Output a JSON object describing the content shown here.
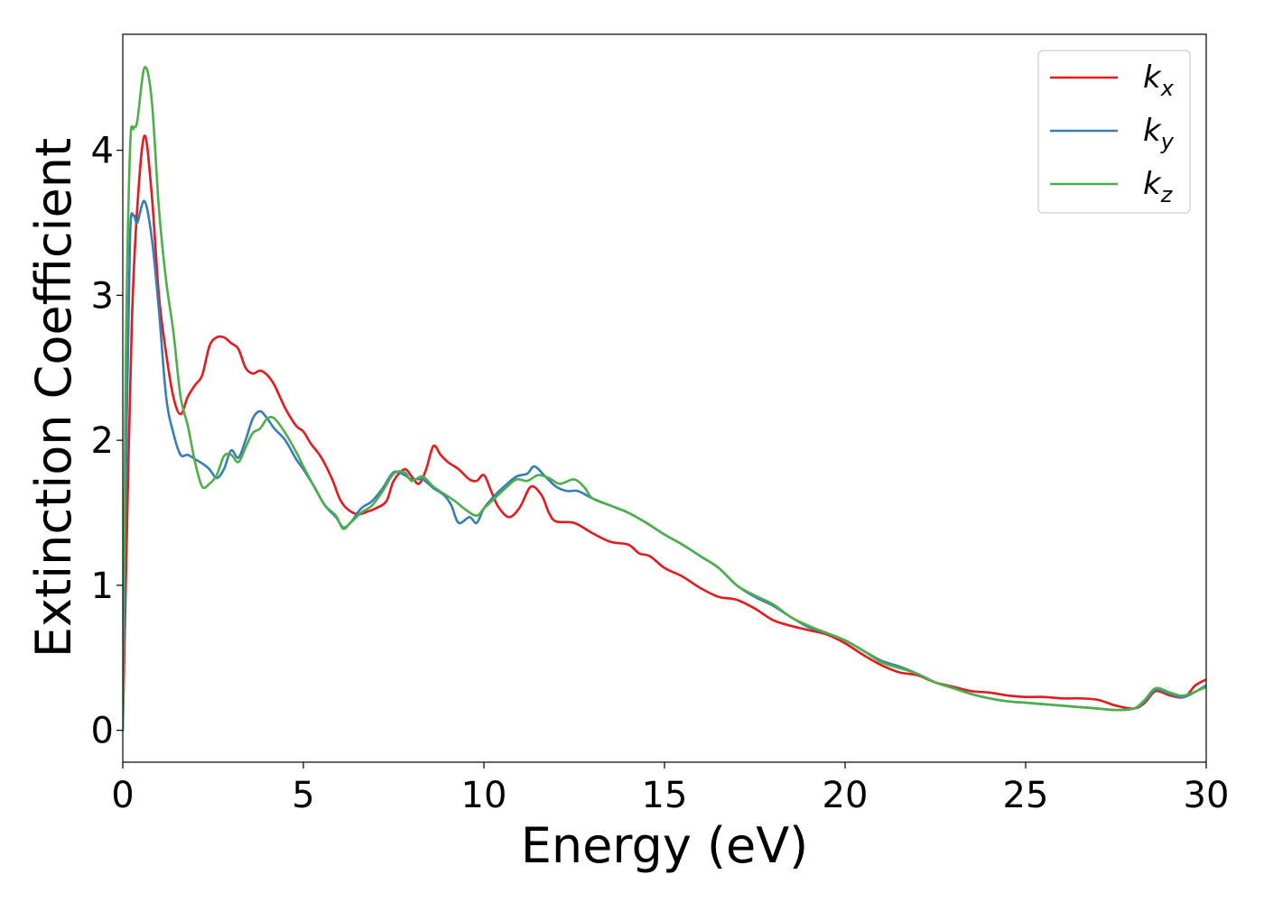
{
  "chart_data": {
    "type": "line",
    "xlabel": "Energy (eV)",
    "ylabel": "Extinction Coefficient",
    "xlim": [
      0,
      30
    ],
    "ylim": [
      -0.22,
      4.8
    ],
    "xticks": [
      0,
      5,
      10,
      15,
      20,
      25,
      30
    ],
    "yticks": [
      0,
      1,
      2,
      3,
      4
    ],
    "grid": false,
    "legend_position": "top-right",
    "series": [
      {
        "name": "k_x",
        "label_base": "k",
        "label_sub": "x",
        "color": "#e41a1c",
        "points": [
          [
            0,
            0
          ],
          [
            0.1,
            1.2
          ],
          [
            0.25,
            2.8
          ],
          [
            0.4,
            3.6
          ],
          [
            0.6,
            4.1
          ],
          [
            0.8,
            3.7
          ],
          [
            1.0,
            3.0
          ],
          [
            1.2,
            2.6
          ],
          [
            1.4,
            2.3
          ],
          [
            1.6,
            2.18
          ],
          [
            1.8,
            2.3
          ],
          [
            2.0,
            2.38
          ],
          [
            2.2,
            2.45
          ],
          [
            2.4,
            2.65
          ],
          [
            2.6,
            2.71
          ],
          [
            2.8,
            2.71
          ],
          [
            3.0,
            2.67
          ],
          [
            3.2,
            2.63
          ],
          [
            3.4,
            2.5
          ],
          [
            3.6,
            2.46
          ],
          [
            3.8,
            2.48
          ],
          [
            4.0,
            2.45
          ],
          [
            4.2,
            2.38
          ],
          [
            4.5,
            2.22
          ],
          [
            4.8,
            2.1
          ],
          [
            5.0,
            2.06
          ],
          [
            5.2,
            1.98
          ],
          [
            5.5,
            1.88
          ],
          [
            5.8,
            1.73
          ],
          [
            6.0,
            1.6
          ],
          [
            6.2,
            1.53
          ],
          [
            6.5,
            1.49
          ],
          [
            6.8,
            1.51
          ],
          [
            7.0,
            1.53
          ],
          [
            7.3,
            1.58
          ],
          [
            7.5,
            1.72
          ],
          [
            7.8,
            1.8
          ],
          [
            8.0,
            1.75
          ],
          [
            8.2,
            1.7
          ],
          [
            8.4,
            1.8
          ],
          [
            8.6,
            1.96
          ],
          [
            8.8,
            1.9
          ],
          [
            9.0,
            1.85
          ],
          [
            9.3,
            1.8
          ],
          [
            9.6,
            1.73
          ],
          [
            9.8,
            1.72
          ],
          [
            10.0,
            1.76
          ],
          [
            10.2,
            1.65
          ],
          [
            10.4,
            1.54
          ],
          [
            10.7,
            1.47
          ],
          [
            11.0,
            1.54
          ],
          [
            11.3,
            1.68
          ],
          [
            11.6,
            1.62
          ],
          [
            11.8,
            1.5
          ],
          [
            12.0,
            1.44
          ],
          [
            12.5,
            1.43
          ],
          [
            13.0,
            1.36
          ],
          [
            13.5,
            1.3
          ],
          [
            14.0,
            1.28
          ],
          [
            14.3,
            1.22
          ],
          [
            14.6,
            1.2
          ],
          [
            15.0,
            1.12
          ],
          [
            15.5,
            1.06
          ],
          [
            16.0,
            0.98
          ],
          [
            16.5,
            0.92
          ],
          [
            17.0,
            0.9
          ],
          [
            17.5,
            0.84
          ],
          [
            18.0,
            0.76
          ],
          [
            18.5,
            0.72
          ],
          [
            19.0,
            0.69
          ],
          [
            19.5,
            0.66
          ],
          [
            20.0,
            0.6
          ],
          [
            20.5,
            0.52
          ],
          [
            21.0,
            0.45
          ],
          [
            21.5,
            0.4
          ],
          [
            22.0,
            0.38
          ],
          [
            22.5,
            0.33
          ],
          [
            23.0,
            0.3
          ],
          [
            23.5,
            0.27
          ],
          [
            24.0,
            0.26
          ],
          [
            24.5,
            0.24
          ],
          [
            25.0,
            0.23
          ],
          [
            25.5,
            0.23
          ],
          [
            26.0,
            0.22
          ],
          [
            26.5,
            0.22
          ],
          [
            27.0,
            0.21
          ],
          [
            27.5,
            0.17
          ],
          [
            28.0,
            0.15
          ],
          [
            28.3,
            0.19
          ],
          [
            28.6,
            0.27
          ],
          [
            29.0,
            0.24
          ],
          [
            29.4,
            0.23
          ],
          [
            29.7,
            0.31
          ],
          [
            30.0,
            0.35
          ]
        ]
      },
      {
        "name": "k_y",
        "label_base": "k",
        "label_sub": "y",
        "color": "#377eb8",
        "points": [
          [
            0,
            0
          ],
          [
            0.1,
            2.0
          ],
          [
            0.2,
            3.4
          ],
          [
            0.3,
            3.55
          ],
          [
            0.4,
            3.5
          ],
          [
            0.6,
            3.65
          ],
          [
            0.8,
            3.4
          ],
          [
            1.0,
            2.9
          ],
          [
            1.2,
            2.3
          ],
          [
            1.4,
            2.05
          ],
          [
            1.6,
            1.9
          ],
          [
            1.8,
            1.9
          ],
          [
            2.0,
            1.87
          ],
          [
            2.2,
            1.84
          ],
          [
            2.4,
            1.8
          ],
          [
            2.6,
            1.74
          ],
          [
            2.8,
            1.8
          ],
          [
            3.0,
            1.93
          ],
          [
            3.2,
            1.88
          ],
          [
            3.4,
            2.0
          ],
          [
            3.6,
            2.15
          ],
          [
            3.8,
            2.2
          ],
          [
            4.0,
            2.15
          ],
          [
            4.2,
            2.08
          ],
          [
            4.5,
            2.0
          ],
          [
            4.8,
            1.87
          ],
          [
            5.0,
            1.8
          ],
          [
            5.3,
            1.68
          ],
          [
            5.6,
            1.55
          ],
          [
            5.9,
            1.47
          ],
          [
            6.1,
            1.4
          ],
          [
            6.3,
            1.43
          ],
          [
            6.6,
            1.53
          ],
          [
            6.9,
            1.58
          ],
          [
            7.2,
            1.67
          ],
          [
            7.5,
            1.78
          ],
          [
            7.8,
            1.76
          ],
          [
            8.0,
            1.73
          ],
          [
            8.3,
            1.73
          ],
          [
            8.6,
            1.67
          ],
          [
            8.9,
            1.62
          ],
          [
            9.1,
            1.55
          ],
          [
            9.3,
            1.43
          ],
          [
            9.6,
            1.47
          ],
          [
            9.8,
            1.43
          ],
          [
            10.0,
            1.53
          ],
          [
            10.3,
            1.62
          ],
          [
            10.6,
            1.69
          ],
          [
            10.9,
            1.75
          ],
          [
            11.2,
            1.77
          ],
          [
            11.4,
            1.82
          ],
          [
            11.7,
            1.75
          ],
          [
            12.0,
            1.68
          ],
          [
            12.3,
            1.65
          ],
          [
            12.6,
            1.65
          ],
          [
            13.0,
            1.6
          ],
          [
            13.5,
            1.55
          ],
          [
            14.0,
            1.5
          ],
          [
            14.5,
            1.43
          ],
          [
            15.0,
            1.35
          ],
          [
            15.5,
            1.28
          ],
          [
            16.0,
            1.2
          ],
          [
            16.5,
            1.12
          ],
          [
            17.0,
            1.0
          ],
          [
            17.5,
            0.92
          ],
          [
            18.0,
            0.86
          ],
          [
            18.5,
            0.78
          ],
          [
            19.0,
            0.71
          ],
          [
            19.5,
            0.67
          ],
          [
            20.0,
            0.62
          ],
          [
            20.5,
            0.55
          ],
          [
            21.0,
            0.48
          ],
          [
            21.5,
            0.44
          ],
          [
            22.0,
            0.39
          ],
          [
            22.5,
            0.33
          ],
          [
            23.0,
            0.29
          ],
          [
            23.5,
            0.25
          ],
          [
            24.0,
            0.22
          ],
          [
            24.5,
            0.2
          ],
          [
            25.0,
            0.19
          ],
          [
            25.5,
            0.18
          ],
          [
            26.0,
            0.17
          ],
          [
            26.5,
            0.16
          ],
          [
            27.0,
            0.15
          ],
          [
            27.5,
            0.14
          ],
          [
            28.0,
            0.15
          ],
          [
            28.3,
            0.2
          ],
          [
            28.6,
            0.28
          ],
          [
            29.0,
            0.25
          ],
          [
            29.4,
            0.23
          ],
          [
            30.0,
            0.31
          ]
        ]
      },
      {
        "name": "k_z",
        "label_base": "k",
        "label_sub": "z",
        "color": "#4daf4a",
        "points": [
          [
            0,
            0
          ],
          [
            0.08,
            2.5
          ],
          [
            0.2,
            4.0
          ],
          [
            0.3,
            4.15
          ],
          [
            0.4,
            4.2
          ],
          [
            0.6,
            4.57
          ],
          [
            0.8,
            4.35
          ],
          [
            1.0,
            3.6
          ],
          [
            1.2,
            3.1
          ],
          [
            1.4,
            2.75
          ],
          [
            1.6,
            2.3
          ],
          [
            1.8,
            2.1
          ],
          [
            2.0,
            1.85
          ],
          [
            2.2,
            1.68
          ],
          [
            2.4,
            1.7
          ],
          [
            2.6,
            1.76
          ],
          [
            2.8,
            1.89
          ],
          [
            3.0,
            1.9
          ],
          [
            3.2,
            1.85
          ],
          [
            3.4,
            1.95
          ],
          [
            3.6,
            2.05
          ],
          [
            3.8,
            2.08
          ],
          [
            4.0,
            2.15
          ],
          [
            4.2,
            2.15
          ],
          [
            4.5,
            2.05
          ],
          [
            4.8,
            1.92
          ],
          [
            5.0,
            1.82
          ],
          [
            5.3,
            1.68
          ],
          [
            5.6,
            1.55
          ],
          [
            5.9,
            1.48
          ],
          [
            6.1,
            1.39
          ],
          [
            6.3,
            1.43
          ],
          [
            6.6,
            1.5
          ],
          [
            6.9,
            1.55
          ],
          [
            7.2,
            1.65
          ],
          [
            7.5,
            1.77
          ],
          [
            7.8,
            1.78
          ],
          [
            8.0,
            1.72
          ],
          [
            8.3,
            1.75
          ],
          [
            8.6,
            1.68
          ],
          [
            8.9,
            1.63
          ],
          [
            9.2,
            1.58
          ],
          [
            9.5,
            1.52
          ],
          [
            9.8,
            1.48
          ],
          [
            10.0,
            1.53
          ],
          [
            10.3,
            1.6
          ],
          [
            10.6,
            1.67
          ],
          [
            10.9,
            1.73
          ],
          [
            11.2,
            1.72
          ],
          [
            11.5,
            1.76
          ],
          [
            11.8,
            1.74
          ],
          [
            12.1,
            1.7
          ],
          [
            12.5,
            1.73
          ],
          [
            12.8,
            1.67
          ],
          [
            13.0,
            1.6
          ],
          [
            13.5,
            1.55
          ],
          [
            14.0,
            1.5
          ],
          [
            14.5,
            1.43
          ],
          [
            15.0,
            1.35
          ],
          [
            15.5,
            1.28
          ],
          [
            16.0,
            1.2
          ],
          [
            16.5,
            1.12
          ],
          [
            17.0,
            1.0
          ],
          [
            17.5,
            0.93
          ],
          [
            18.0,
            0.87
          ],
          [
            18.5,
            0.78
          ],
          [
            19.0,
            0.72
          ],
          [
            19.5,
            0.67
          ],
          [
            20.0,
            0.62
          ],
          [
            20.5,
            0.55
          ],
          [
            21.0,
            0.47
          ],
          [
            21.5,
            0.43
          ],
          [
            22.0,
            0.39
          ],
          [
            22.5,
            0.33
          ],
          [
            23.0,
            0.29
          ],
          [
            23.5,
            0.25
          ],
          [
            24.0,
            0.22
          ],
          [
            24.5,
            0.2
          ],
          [
            25.0,
            0.19
          ],
          [
            25.5,
            0.18
          ],
          [
            26.0,
            0.17
          ],
          [
            26.5,
            0.16
          ],
          [
            27.0,
            0.15
          ],
          [
            27.5,
            0.14
          ],
          [
            28.0,
            0.15
          ],
          [
            28.3,
            0.21
          ],
          [
            28.6,
            0.29
          ],
          [
            29.0,
            0.26
          ],
          [
            29.4,
            0.24
          ],
          [
            30.0,
            0.3
          ]
        ]
      }
    ]
  }
}
